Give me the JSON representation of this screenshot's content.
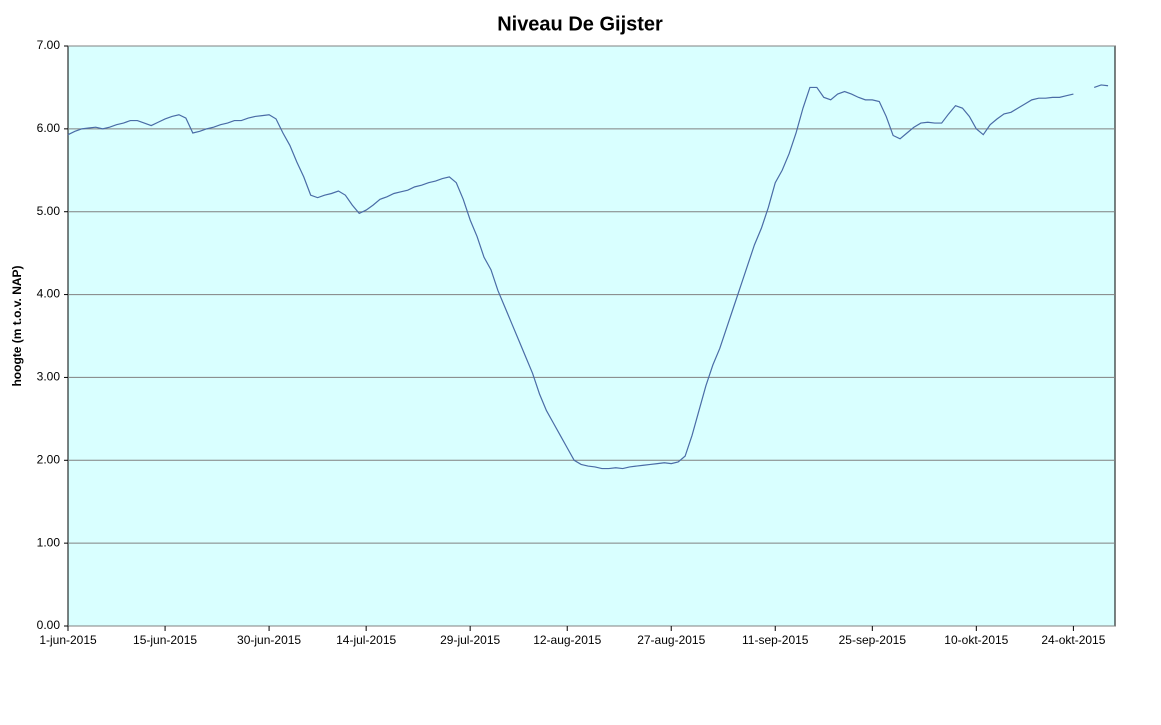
{
  "chart_data": {
    "type": "line",
    "title": "Niveau De Gijster",
    "y_label": "hoogte (m t.o.v. NAP)",
    "x": [
      "2015-06-01",
      "2015-06-02",
      "2015-06-03",
      "2015-06-04",
      "2015-06-05",
      "2015-06-06",
      "2015-06-07",
      "2015-06-08",
      "2015-06-09",
      "2015-06-10",
      "2015-06-11",
      "2015-06-12",
      "2015-06-13",
      "2015-06-14",
      "2015-06-15",
      "2015-06-16",
      "2015-06-17",
      "2015-06-18",
      "2015-06-19",
      "2015-06-20",
      "2015-06-21",
      "2015-06-22",
      "2015-06-23",
      "2015-06-24",
      "2015-06-25",
      "2015-06-26",
      "2015-06-27",
      "2015-06-28",
      "2015-06-29",
      "2015-06-30",
      "2015-07-01",
      "2015-07-02",
      "2015-07-03",
      "2015-07-04",
      "2015-07-05",
      "2015-07-06",
      "2015-07-07",
      "2015-07-08",
      "2015-07-09",
      "2015-07-10",
      "2015-07-11",
      "2015-07-12",
      "2015-07-13",
      "2015-07-14",
      "2015-07-15",
      "2015-07-16",
      "2015-07-17",
      "2015-07-18",
      "2015-07-19",
      "2015-07-20",
      "2015-07-21",
      "2015-07-22",
      "2015-07-23",
      "2015-07-24",
      "2015-07-25",
      "2015-07-26",
      "2015-07-27",
      "2015-07-28",
      "2015-07-29",
      "2015-07-30",
      "2015-07-31",
      "2015-08-01",
      "2015-08-02",
      "2015-08-03",
      "2015-08-04",
      "2015-08-05",
      "2015-08-06",
      "2015-08-07",
      "2015-08-08",
      "2015-08-09",
      "2015-08-10",
      "2015-08-11",
      "2015-08-12",
      "2015-08-13",
      "2015-08-14",
      "2015-08-15",
      "2015-08-16",
      "2015-08-17",
      "2015-08-18",
      "2015-08-19",
      "2015-08-20",
      "2015-08-21",
      "2015-08-22",
      "2015-08-23",
      "2015-08-24",
      "2015-08-25",
      "2015-08-26",
      "2015-08-27",
      "2015-08-28",
      "2015-08-29",
      "2015-08-30",
      "2015-08-31",
      "2015-09-01",
      "2015-09-02",
      "2015-09-03",
      "2015-09-04",
      "2015-09-05",
      "2015-09-06",
      "2015-09-07",
      "2015-09-08",
      "2015-09-09",
      "2015-09-10",
      "2015-09-11",
      "2015-09-12",
      "2015-09-13",
      "2015-09-14",
      "2015-09-15",
      "2015-09-16",
      "2015-09-17",
      "2015-09-18",
      "2015-09-19",
      "2015-09-20",
      "2015-09-21",
      "2015-09-22",
      "2015-09-23",
      "2015-09-24",
      "2015-09-25",
      "2015-09-26",
      "2015-09-27",
      "2015-09-28",
      "2015-09-29",
      "2015-09-30",
      "2015-10-01",
      "2015-10-02",
      "2015-10-03",
      "2015-10-04",
      "2015-10-05",
      "2015-10-06",
      "2015-10-07",
      "2015-10-08",
      "2015-10-09",
      "2015-10-10",
      "2015-10-11",
      "2015-10-12",
      "2015-10-13",
      "2015-10-14",
      "2015-10-15",
      "2015-10-16",
      "2015-10-17",
      "2015-10-18",
      "2015-10-19",
      "2015-10-20",
      "2015-10-21",
      "2015-10-22",
      "2015-10-23",
      "2015-10-24",
      "2015-10-25",
      "2015-10-26",
      "2015-10-27",
      "2015-10-28",
      "2015-10-29"
    ],
    "series": [
      {
        "color": "#4a6ca6",
        "values": [
          5.93,
          5.97,
          6.0,
          6.01,
          6.02,
          6.0,
          6.02,
          6.05,
          6.07,
          6.1,
          6.1,
          6.07,
          6.04,
          6.08,
          6.12,
          6.15,
          6.17,
          6.13,
          5.95,
          5.97,
          6.0,
          6.02,
          6.05,
          6.07,
          6.1,
          6.1,
          6.13,
          6.15,
          6.16,
          6.17,
          6.12,
          5.95,
          5.8,
          5.6,
          5.42,
          5.2,
          5.17,
          5.2,
          5.22,
          5.25,
          5.2,
          5.08,
          4.98,
          5.02,
          5.08,
          5.15,
          5.18,
          5.22,
          5.24,
          5.26,
          5.3,
          5.32,
          5.35,
          5.37,
          5.4,
          5.42,
          5.35,
          5.15,
          4.9,
          4.7,
          4.45,
          4.3,
          4.05,
          3.85,
          3.65,
          3.45,
          3.25,
          3.05,
          2.8,
          2.6,
          2.45,
          2.3,
          2.15,
          2.0,
          1.95,
          1.93,
          1.92,
          1.9,
          1.9,
          1.91,
          1.9,
          1.92,
          1.93,
          1.94,
          1.95,
          1.96,
          1.97,
          1.96,
          1.98,
          2.05,
          2.3,
          2.6,
          2.9,
          3.15,
          3.35,
          3.6,
          3.85,
          4.1,
          4.35,
          4.6,
          4.8,
          5.05,
          5.35,
          5.5,
          5.7,
          5.95,
          6.25,
          6.5,
          6.5,
          6.38,
          6.35,
          6.42,
          6.45,
          6.42,
          6.38,
          6.35,
          6.35,
          6.33,
          6.15,
          5.92,
          5.88,
          5.95,
          6.02,
          6.07,
          6.08,
          6.07,
          6.07,
          6.18,
          6.28,
          6.25,
          6.15,
          6.0,
          5.93,
          6.05,
          6.12,
          6.18,
          6.2,
          6.25,
          6.3,
          6.35,
          6.37,
          6.37,
          6.38,
          6.38,
          6.4,
          6.42,
          null,
          null,
          6.5,
          6.53,
          6.52
        ]
      }
    ],
    "xlim": [
      "2015-06-01",
      "2015-10-30"
    ],
    "xticks": [
      {
        "value": "2015-06-01",
        "label": "1-jun-2015"
      },
      {
        "value": "2015-06-15",
        "label": "15-jun-2015"
      },
      {
        "value": "2015-06-30",
        "label": "30-jun-2015"
      },
      {
        "value": "2015-07-14",
        "label": "14-jul-2015"
      },
      {
        "value": "2015-07-29",
        "label": "29-jul-2015"
      },
      {
        "value": "2015-08-12",
        "label": "12-aug-2015"
      },
      {
        "value": "2015-08-27",
        "label": "27-aug-2015"
      },
      {
        "value": "2015-09-11",
        "label": "11-sep-2015"
      },
      {
        "value": "2015-09-25",
        "label": "25-sep-2015"
      },
      {
        "value": "2015-10-10",
        "label": "10-okt-2015"
      },
      {
        "value": "2015-10-24",
        "label": "24-okt-2015"
      }
    ],
    "ylim": [
      0,
      7
    ],
    "yticks": [
      {
        "value": 0,
        "label": "0.00"
      },
      {
        "value": 1,
        "label": "1.00"
      },
      {
        "value": 2,
        "label": "2.00"
      },
      {
        "value": 3,
        "label": "3.00"
      },
      {
        "value": 4,
        "label": "4.00"
      },
      {
        "value": 5,
        "label": "5.00"
      },
      {
        "value": 6,
        "label": "6.00"
      },
      {
        "value": 7,
        "label": "7.00"
      }
    ],
    "grid": true,
    "background": "#d9ffff"
  }
}
